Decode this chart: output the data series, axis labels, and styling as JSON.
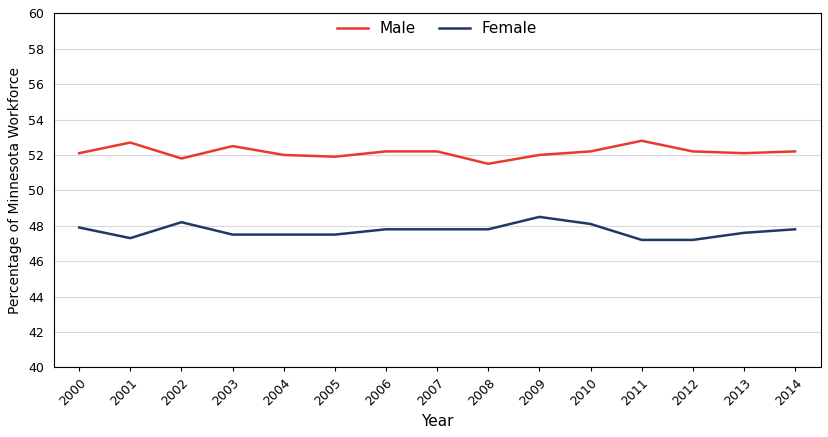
{
  "years": [
    2000,
    2001,
    2002,
    2003,
    2004,
    2005,
    2006,
    2007,
    2008,
    2009,
    2010,
    2011,
    2012,
    2013,
    2014
  ],
  "male": [
    52.1,
    52.7,
    51.8,
    52.5,
    52.0,
    51.9,
    52.2,
    52.2,
    51.5,
    52.0,
    52.2,
    52.8,
    52.2,
    52.1,
    52.2
  ],
  "female": [
    47.9,
    47.3,
    48.2,
    47.5,
    47.5,
    47.5,
    47.8,
    47.8,
    47.8,
    48.5,
    48.1,
    47.2,
    47.2,
    47.6,
    47.8
  ],
  "male_color": "#E8392A",
  "female_color": "#1F3864",
  "xlabel": "Year",
  "ylabel": "Percentage of Minnesota Workforce",
  "ylim": [
    40,
    60
  ],
  "yticks": [
    40,
    42,
    44,
    46,
    48,
    50,
    52,
    54,
    56,
    58,
    60
  ],
  "legend_labels": [
    "Male",
    "Female"
  ],
  "line_width": 1.8,
  "background_color": "#FFFFFF",
  "grid_color": "#D9D9D9",
  "border_color": "#000000",
  "tick_fontsize": 9,
  "label_fontsize": 11,
  "ylabel_fontsize": 10
}
